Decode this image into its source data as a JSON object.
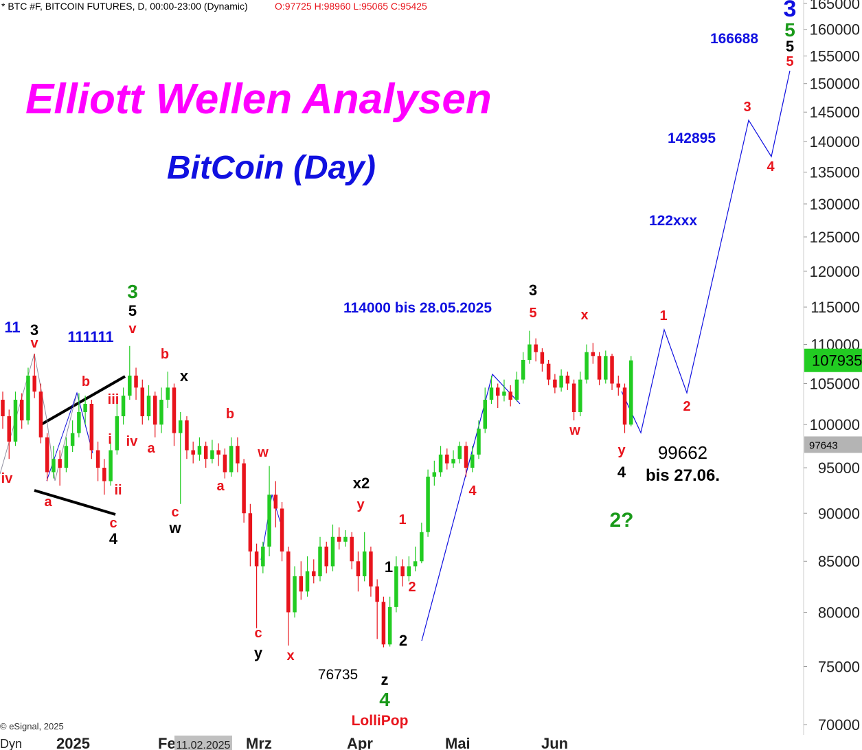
{
  "chart_data": {
    "type": "candlestick",
    "header": {
      "symbol": "* BTC #F, BITCOIN FUTURES, D, 00:00-23:00 (Dynamic)",
      "ohlc": "O:97725 H:98960 L:95065 C:95425"
    },
    "title": "Elliott Wellen Analysen",
    "subtitle": "BitCoin (Day)",
    "footer": "© eSignal, 2025",
    "log_scale": true,
    "up_color": "#22cc22",
    "down_color": "#e8141c",
    "ylim": [
      70000,
      165000
    ],
    "yticks": [
      70000,
      75000,
      80000,
      85000,
      90000,
      95000,
      100000,
      105000,
      110000,
      115000,
      120000,
      125000,
      130000,
      135000,
      140000,
      145000,
      150000,
      155000,
      160000,
      165000
    ],
    "xlabels": [
      "Dyn",
      "2025",
      "Feb",
      "11.02.2025",
      "Mrz",
      "Apr",
      "Mai",
      "Jun"
    ],
    "last_price": 107935,
    "ref_price": 97643,
    "open": [
      103000,
      101000,
      98000,
      103000,
      100500,
      106000,
      104000,
      98500,
      94500,
      96000,
      95000,
      97500,
      99000,
      101500,
      102500,
      97000,
      95000,
      93500,
      97000,
      101000,
      103500,
      106000,
      104500,
      101000,
      103500,
      100000,
      103000,
      104500,
      99000,
      100500,
      97000,
      96500,
      97500,
      96000,
      97000,
      96500,
      94500,
      97500,
      95500,
      90000,
      86000,
      84500,
      86500,
      92000,
      90500,
      86000,
      80000,
      83500,
      82000,
      84000,
      83500,
      86500,
      84500,
      87500,
      87000,
      87500,
      85000,
      83500,
      86000,
      82500,
      81000,
      77000,
      80500,
      84500,
      83500,
      84500,
      85000,
      88000,
      94000,
      94500,
      96500,
      95500,
      96000,
      97500,
      95000,
      96500,
      99500,
      103000,
      104500,
      103500,
      104000,
      103000,
      105500,
      108000,
      110000,
      109000,
      107500,
      105500,
      104500,
      106000,
      105000,
      101500,
      105500,
      109000,
      108500,
      105500,
      108500,
      105000,
      104500,
      100000
    ],
    "high": [
      104000,
      101800,
      104000,
      103800,
      107000,
      108800,
      105000,
      99000,
      97500,
      97000,
      98500,
      100500,
      103800,
      103500,
      103000,
      98000,
      96000,
      98000,
      102500,
      104500,
      109800,
      107000,
      105500,
      104800,
      104000,
      104500,
      106500,
      105000,
      101500,
      101000,
      98000,
      98500,
      98000,
      98200,
      97800,
      97200,
      98500,
      98500,
      96000,
      91000,
      86800,
      87000,
      95200,
      93500,
      91200,
      86500,
      84500,
      85000,
      85500,
      85200,
      87500,
      87000,
      88800,
      88500,
      88200,
      88000,
      86000,
      88000,
      86500,
      83200,
      81500,
      81500,
      85500,
      85200,
      85500,
      86500,
      89000,
      94800,
      95800,
      97500,
      97200,
      97000,
      98000,
      98000,
      97500,
      100500,
      104500,
      106000,
      105000,
      105500,
      104800,
      106500,
      109000,
      111800,
      110800,
      109500,
      108000,
      106200,
      106800,
      106500,
      105500,
      106500,
      110000,
      110200,
      109000,
      109200,
      108800,
      106000,
      105000,
      108500
    ],
    "low": [
      99500,
      96000,
      97500,
      99500,
      100000,
      103200,
      97800,
      93500,
      93800,
      93000,
      94500,
      96800,
      98500,
      100000,
      96000,
      93500,
      92000,
      93000,
      96500,
      100000,
      103000,
      103000,
      100000,
      100500,
      98500,
      99000,
      102000,
      97500,
      91000,
      96000,
      95500,
      95800,
      95000,
      95500,
      95200,
      93800,
      94000,
      94500,
      89000,
      84500,
      78500,
      83800,
      85500,
      88500,
      85000,
      76900,
      79500,
      81200,
      81500,
      82800,
      83000,
      83800,
      84000,
      86200,
      86500,
      84200,
      82000,
      83000,
      81500,
      77500,
      76735,
      76800,
      80000,
      82500,
      83000,
      84000,
      84800,
      87500,
      93000,
      94000,
      94800,
      95000,
      95500,
      94000,
      94500,
      96000,
      99000,
      102500,
      102000,
      102800,
      102200,
      102800,
      105000,
      107500,
      107800,
      106500,
      104800,
      103800,
      104000,
      104200,
      100500,
      101000,
      105000,
      107500,
      104800,
      105000,
      104200,
      103500,
      99000,
      99800
    ],
    "close": [
      101000,
      98000,
      103000,
      100500,
      106000,
      104000,
      98500,
      94500,
      96000,
      95000,
      97500,
      99000,
      101500,
      102500,
      97000,
      95000,
      93500,
      97000,
      101000,
      103500,
      106000,
      104500,
      101000,
      103500,
      100000,
      103000,
      104500,
      99000,
      100500,
      97000,
      96500,
      97500,
      96000,
      97000,
      96500,
      94500,
      97500,
      95500,
      90000,
      86000,
      84500,
      86500,
      92000,
      90500,
      86000,
      80000,
      83500,
      82000,
      84000,
      83500,
      86500,
      84500,
      87500,
      87000,
      87500,
      85000,
      83500,
      86000,
      82500,
      81000,
      77000,
      80500,
      84500,
      83500,
      84500,
      85000,
      88000,
      94000,
      94500,
      96500,
      95500,
      96000,
      97500,
      95000,
      96500,
      99500,
      103000,
      104500,
      103500,
      104000,
      103000,
      105500,
      108000,
      110000,
      109000,
      107500,
      105500,
      104500,
      106000,
      105000,
      101500,
      105500,
      109000,
      108500,
      105500,
      108500,
      105000,
      104500,
      100000,
      107935
    ],
    "annotations": [
      {
        "text": "11",
        "color": "#1010e0"
      },
      {
        "text": "3",
        "color": "#000000"
      },
      {
        "text": "v",
        "color": "#e8141c"
      },
      {
        "text": "111111",
        "color": "#1010e0"
      },
      {
        "text": "iv",
        "color": "#e8141c"
      },
      {
        "text": "a",
        "color": "#e8141c"
      },
      {
        "text": "b",
        "color": "#e8141c"
      },
      {
        "text": "iii",
        "color": "#e8141c"
      },
      {
        "text": "i",
        "color": "#e8141c"
      },
      {
        "text": "iv",
        "color": "#e8141c"
      },
      {
        "text": "ii",
        "color": "#e8141c"
      },
      {
        "text": "c",
        "color": "#e8141c"
      },
      {
        "text": "4",
        "color": "#000000"
      },
      {
        "text": "3",
        "color": "#1a9a1a"
      },
      {
        "text": "5",
        "color": "#000000"
      },
      {
        "text": "v",
        "color": "#e8141c"
      },
      {
        "text": "b",
        "color": "#e8141c"
      },
      {
        "text": "x",
        "color": "#000000"
      },
      {
        "text": "a",
        "color": "#e8141c"
      },
      {
        "text": "c",
        "color": "#e8141c"
      },
      {
        "text": "w",
        "color": "#000000"
      },
      {
        "text": "b",
        "color": "#e8141c"
      },
      {
        "text": "a",
        "color": "#e8141c"
      },
      {
        "text": "w",
        "color": "#e8141c"
      },
      {
        "text": "c",
        "color": "#e8141c"
      },
      {
        "text": "y",
        "color": "#000000"
      },
      {
        "text": "x",
        "color": "#e8141c"
      },
      {
        "text": "76735",
        "color": "#000000"
      },
      {
        "text": "x2",
        "color": "#000000"
      },
      {
        "text": "y",
        "color": "#e8141c"
      },
      {
        "text": "1",
        "color": "#e8141c"
      },
      {
        "text": "1",
        "color": "#000000"
      },
      {
        "text": "2",
        "color": "#e8141c"
      },
      {
        "text": "2",
        "color": "#000000"
      },
      {
        "text": "z",
        "color": "#000000"
      },
      {
        "text": "4",
        "color": "#1a9a1a"
      },
      {
        "text": "LolliPop",
        "color": "#e8141c"
      },
      {
        "text": "114000 bis 28.05.2025",
        "color": "#1010e0"
      },
      {
        "text": "3",
        "color": "#000000"
      },
      {
        "text": "5",
        "color": "#e8141c"
      },
      {
        "text": "4",
        "color": "#e8141c"
      },
      {
        "text": "x",
        "color": "#e8141c"
      },
      {
        "text": "w",
        "color": "#e8141c"
      },
      {
        "text": "y",
        "color": "#e8141c"
      },
      {
        "text": "4",
        "color": "#000000"
      },
      {
        "text": "99662",
        "color": "#000000"
      },
      {
        "text": "bis 27.06.",
        "color": "#000000"
      },
      {
        "text": "2?",
        "color": "#1a9a1a"
      },
      {
        "text": "1",
        "color": "#e8141c"
      },
      {
        "text": "2",
        "color": "#e8141c"
      },
      {
        "text": "122xxx",
        "color": "#1010e0"
      },
      {
        "text": "142895",
        "color": "#1010e0"
      },
      {
        "text": "3",
        "color": "#e8141c"
      },
      {
        "text": "4",
        "color": "#e8141c"
      },
      {
        "text": "166688",
        "color": "#1010e0"
      },
      {
        "text": "3",
        "color": "#1010e0"
      },
      {
        "text": "5",
        "color": "#1a9a1a"
      },
      {
        "text": "5",
        "color": "#000000"
      },
      {
        "text": "5",
        "color": "#e8141c"
      }
    ]
  }
}
